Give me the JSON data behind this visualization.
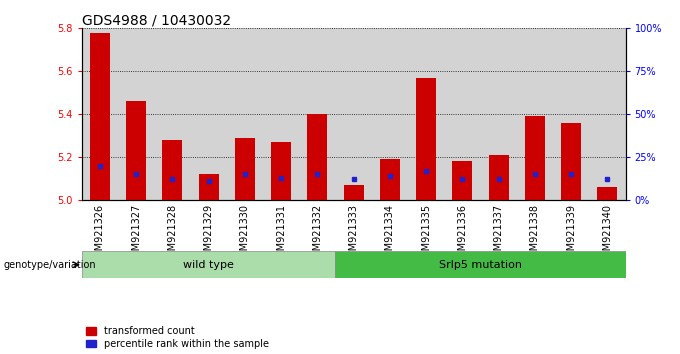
{
  "title": "GDS4988 / 10430032",
  "samples": [
    "GSM921326",
    "GSM921327",
    "GSM921328",
    "GSM921329",
    "GSM921330",
    "GSM921331",
    "GSM921332",
    "GSM921333",
    "GSM921334",
    "GSM921335",
    "GSM921336",
    "GSM921337",
    "GSM921338",
    "GSM921339",
    "GSM921340"
  ],
  "red_values": [
    5.78,
    5.46,
    5.28,
    5.12,
    5.29,
    5.27,
    5.4,
    5.07,
    5.19,
    5.57,
    5.18,
    5.21,
    5.39,
    5.36,
    5.06
  ],
  "blue_percentile": [
    20,
    15,
    12,
    11,
    15,
    13,
    15,
    12,
    14,
    17,
    12,
    12,
    15,
    15,
    12
  ],
  "ylim_left": [
    5.0,
    5.8
  ],
  "ylim_right": [
    0,
    100
  ],
  "yticks_left": [
    5.0,
    5.2,
    5.4,
    5.6,
    5.8
  ],
  "yticks_right": [
    0,
    25,
    50,
    75,
    100
  ],
  "ytick_labels_right": [
    "0%",
    "25%",
    "50%",
    "75%",
    "100%"
  ],
  "wild_type_indices": [
    0,
    1,
    2,
    3,
    4,
    5,
    6
  ],
  "mutation_indices": [
    7,
    8,
    9,
    10,
    11,
    12,
    13,
    14
  ],
  "wild_type_label": "wild type",
  "mutation_label": "Srlp5 mutation",
  "genotype_label": "genotype/variation",
  "legend_red": "transformed count",
  "legend_blue": "percentile rank within the sample",
  "bar_width": 0.55,
  "bar_color_red": "#cc0000",
  "bar_color_blue": "#2222cc",
  "bg_color_axis": "#d3d3d3",
  "bg_color_wild": "#aaddaa",
  "bg_color_mutation": "#44bb44",
  "title_fontsize": 10,
  "tick_fontsize": 7,
  "label_fontsize": 8
}
